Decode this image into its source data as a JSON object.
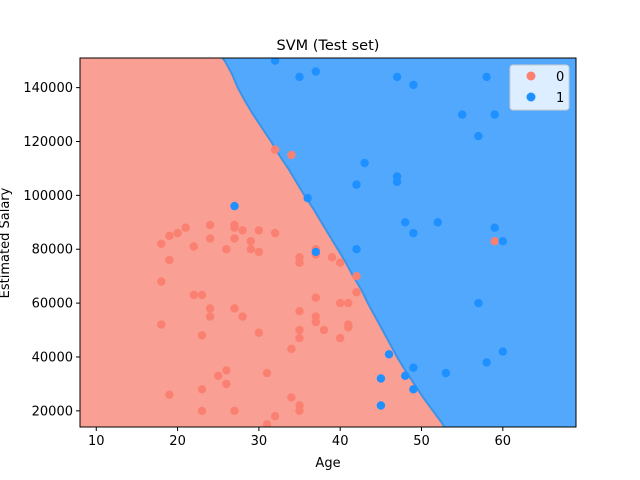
{
  "chart_data": {
    "type": "scatter",
    "title": "SVM (Test set)",
    "xlabel": "Age",
    "ylabel": "Estimated Salary",
    "xlim": [
      8,
      69
    ],
    "ylim": [
      14000,
      151000
    ],
    "xticks": [
      10,
      20,
      30,
      40,
      50,
      60
    ],
    "yticks": [
      20000,
      40000,
      60000,
      80000,
      100000,
      120000,
      140000
    ],
    "xtick_labels": [
      "10",
      "20",
      "30",
      "40",
      "50",
      "60"
    ],
    "ytick_labels": [
      "20000",
      "40000",
      "60000",
      "80000",
      "100000",
      "120000",
      "140000"
    ],
    "grid": false,
    "legend": {
      "placement": "top-right",
      "entries": [
        "0",
        "1"
      ]
    },
    "colors": {
      "region_0": "#fa9f93",
      "region_1": "#52a8fc",
      "class_0": "#fa8072",
      "class_1": "#1e90ff",
      "boundary": "#3f93e6"
    },
    "decision_boundary": [
      [
        25.5,
        151000
      ],
      [
        25.8,
        150000
      ],
      [
        26.7,
        145000
      ],
      [
        27.4,
        140000
      ],
      [
        28.3,
        135000
      ],
      [
        29.3,
        130000
      ],
      [
        30.4,
        125000
      ],
      [
        31.5,
        120000
      ],
      [
        32.5,
        115000
      ],
      [
        33.6,
        110000
      ],
      [
        34.6,
        105000
      ],
      [
        35.6,
        100000
      ],
      [
        36.7,
        95000
      ],
      [
        37.7,
        90000
      ],
      [
        38.7,
        85000
      ],
      [
        39.7,
        80000
      ],
      [
        40.7,
        75000
      ],
      [
        41.6,
        70000
      ],
      [
        42.6,
        65000
      ],
      [
        43.4,
        60000
      ],
      [
        44.3,
        55000
      ],
      [
        45.2,
        50000
      ],
      [
        46.1,
        45000
      ],
      [
        47.0,
        40000
      ],
      [
        48.0,
        35000
      ],
      [
        49.1,
        30000
      ],
      [
        50.2,
        25000
      ],
      [
        51.4,
        20000
      ],
      [
        52.4,
        16000
      ],
      [
        52.8,
        14000
      ]
    ],
    "series": [
      {
        "name": "0",
        "points": [
          [
            18,
            82000
          ],
          [
            18,
            68000
          ],
          [
            18,
            52000
          ],
          [
            19,
            85000
          ],
          [
            19,
            76000
          ],
          [
            19,
            26000
          ],
          [
            20,
            86000
          ],
          [
            21,
            88000
          ],
          [
            22,
            81000
          ],
          [
            22,
            63000
          ],
          [
            23,
            63000
          ],
          [
            23,
            48000
          ],
          [
            23,
            28000
          ],
          [
            23,
            20000
          ],
          [
            24,
            89000
          ],
          [
            24,
            84000
          ],
          [
            24,
            58000
          ],
          [
            24,
            55000
          ],
          [
            25,
            33000
          ],
          [
            26,
            80000
          ],
          [
            26,
            35000
          ],
          [
            26,
            30000
          ],
          [
            27,
            89000
          ],
          [
            27,
            88000
          ],
          [
            27,
            84000
          ],
          [
            27,
            58000
          ],
          [
            27,
            20000
          ],
          [
            28,
            87000
          ],
          [
            28,
            55000
          ],
          [
            29,
            83000
          ],
          [
            29,
            80000
          ],
          [
            30,
            87000
          ],
          [
            30,
            79000
          ],
          [
            30,
            49000
          ],
          [
            31,
            34000
          ],
          [
            31,
            15000
          ],
          [
            32,
            117000
          ],
          [
            32,
            86000
          ],
          [
            32,
            18000
          ],
          [
            34,
            115000
          ],
          [
            34,
            43000
          ],
          [
            34,
            25000
          ],
          [
            35,
            77000
          ],
          [
            35,
            75000
          ],
          [
            35,
            57000
          ],
          [
            35,
            50000
          ],
          [
            35,
            47000
          ],
          [
            35,
            22000
          ],
          [
            35,
            20000
          ],
          [
            37,
            80000
          ],
          [
            37,
            78000
          ],
          [
            37,
            62000
          ],
          [
            37,
            55000
          ],
          [
            37,
            53000
          ],
          [
            38,
            50000
          ],
          [
            39,
            77000
          ],
          [
            40,
            75000
          ],
          [
            40,
            60000
          ],
          [
            40,
            47000
          ],
          [
            41,
            60000
          ],
          [
            41,
            52000
          ],
          [
            41,
            51000
          ],
          [
            42,
            70000
          ],
          [
            42,
            64000
          ],
          [
            59,
            83000
          ]
        ]
      },
      {
        "name": "1",
        "points": [
          [
            27,
            96000
          ],
          [
            32,
            150000
          ],
          [
            35,
            144000
          ],
          [
            36,
            99000
          ],
          [
            37,
            146000
          ],
          [
            37,
            79000
          ],
          [
            42,
            104000
          ],
          [
            42,
            80000
          ],
          [
            43,
            112000
          ],
          [
            45,
            32000
          ],
          [
            45,
            22000
          ],
          [
            46,
            41000
          ],
          [
            47,
            144000
          ],
          [
            47,
            107000
          ],
          [
            47,
            105000
          ],
          [
            48,
            90000
          ],
          [
            48,
            33000
          ],
          [
            49,
            141000
          ],
          [
            49,
            86000
          ],
          [
            49,
            36000
          ],
          [
            49,
            28000
          ],
          [
            52,
            90000
          ],
          [
            53,
            34000
          ],
          [
            55,
            130000
          ],
          [
            57,
            122000
          ],
          [
            57,
            60000
          ],
          [
            58,
            144000
          ],
          [
            58,
            38000
          ],
          [
            59,
            130000
          ],
          [
            59,
            88000
          ],
          [
            60,
            83000
          ],
          [
            60,
            42000
          ]
        ]
      }
    ]
  }
}
